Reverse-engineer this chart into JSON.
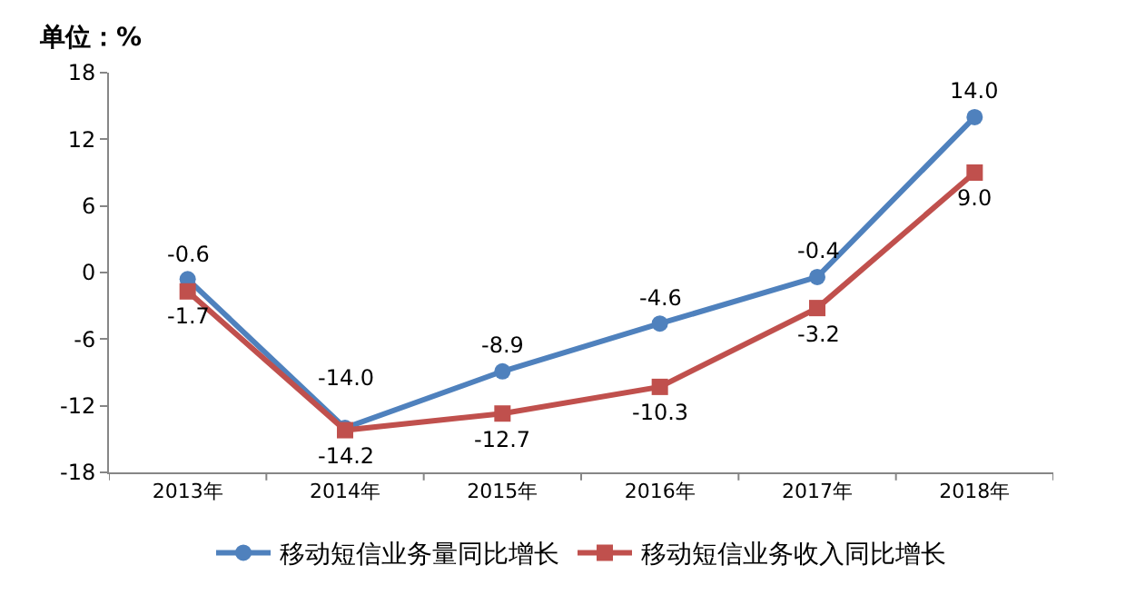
{
  "chart_data": {
    "type": "line",
    "ylabel": "单位：%",
    "categories": [
      "2013年",
      "2014年",
      "2015年",
      "2016年",
      "2017年",
      "2018年"
    ],
    "series": [
      {
        "name": "移动短信业务量同比增长",
        "color": "#4f81bd",
        "marker": "circle",
        "values": [
          -0.6,
          -14.0,
          -8.9,
          -4.6,
          -0.4,
          14.0
        ],
        "value_labels": [
          "-0.6",
          "-14.0",
          "-8.9",
          "-4.6",
          "-0.4",
          "14.0"
        ]
      },
      {
        "name": "移动短信业务收入同比增长",
        "color": "#c0504d",
        "marker": "square",
        "values": [
          -1.7,
          -14.2,
          -12.7,
          -10.3,
          -3.2,
          9.0
        ],
        "value_labels": [
          "-1.7",
          "-14.2",
          "-12.7",
          "-10.3",
          "-3.2",
          "9.0"
        ]
      }
    ],
    "ylim": [
      -18,
      18
    ],
    "yticks": [
      -18,
      -12,
      -6,
      0,
      6,
      12,
      18
    ],
    "legend": "bottom",
    "line_style": "solid"
  }
}
